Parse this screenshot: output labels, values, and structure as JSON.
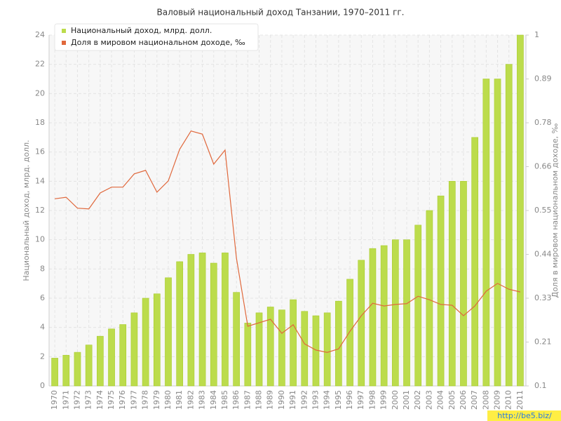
{
  "chart_data": {
    "type": "bar_line",
    "title": "Валовый национальный доход Танзании, 1970–2011 гг.",
    "y_label": "Национальный доход, млрд. долл.",
    "y2_label": "Доля в мировом национальном доходе, ‰",
    "categories": [
      "1970",
      "1971",
      "1972",
      "1973",
      "1974",
      "1975",
      "1976",
      "1977",
      "1978",
      "1979",
      "1980",
      "1981",
      "1982",
      "1983",
      "1984",
      "1985",
      "1986",
      "1987",
      "1988",
      "1989",
      "1990",
      "1991",
      "1992",
      "1993",
      "1994",
      "1995",
      "1996",
      "1997",
      "1998",
      "1999",
      "2000",
      "2001",
      "2002",
      "2003",
      "2004",
      "2005",
      "2006",
      "2007",
      "2008",
      "2009",
      "2010",
      "2011"
    ],
    "series": [
      {
        "name": "Национальный доход, млрд. долл.",
        "color": "#bcdc4c",
        "kind": "bar",
        "values": [
          1.9,
          2.1,
          2.3,
          2.8,
          3.4,
          3.9,
          4.2,
          5.0,
          6.0,
          6.3,
          7.4,
          8.5,
          9.0,
          9.1,
          8.4,
          9.1,
          6.4,
          4.3,
          5.0,
          5.4,
          5.2,
          5.9,
          5.1,
          4.8,
          5.0,
          5.8,
          7.3,
          8.6,
          9.4,
          9.6,
          10,
          10,
          11,
          12,
          13,
          14,
          14,
          17,
          21,
          21,
          22,
          24
        ]
      },
      {
        "name": "Доля в мировом национальном доходе, ‰",
        "color": "#e0683c",
        "kind": "line",
        "axis": "y2",
        "values": [
          0.58,
          0.584,
          0.556,
          0.554,
          0.595,
          0.61,
          0.61,
          0.644,
          0.653,
          0.597,
          0.626,
          0.707,
          0.754,
          0.746,
          0.669,
          0.705,
          0.428,
          0.253,
          0.262,
          0.271,
          0.235,
          0.257,
          0.208,
          0.192,
          0.186,
          0.195,
          0.24,
          0.28,
          0.312,
          0.305,
          0.309,
          0.311,
          0.33,
          0.321,
          0.309,
          0.307,
          0.28,
          0.305,
          0.343,
          0.363,
          0.348,
          0.341
        ]
      }
    ],
    "ylim": [
      0,
      24
    ],
    "yticks": [
      0,
      2,
      4,
      6,
      8,
      10,
      12,
      14,
      16,
      18,
      20,
      22,
      24
    ],
    "y2lim": [
      0.1,
      1
    ],
    "y2ticks": [
      0.1,
      {
        "value": 0.2125,
        "label": "0.21"
      },
      {
        "value": 0.325,
        "label": "0.33"
      },
      {
        "value": 0.4375,
        "label": "0.44"
      },
      0.55,
      {
        "value": 0.6625,
        "label": "0.66"
      },
      {
        "value": 0.775,
        "label": "0.78"
      },
      {
        "value": 0.8875,
        "label": "0.89"
      },
      1
    ],
    "grid": true,
    "legend": "top-left",
    "watermark": "http://be5.biz/"
  }
}
